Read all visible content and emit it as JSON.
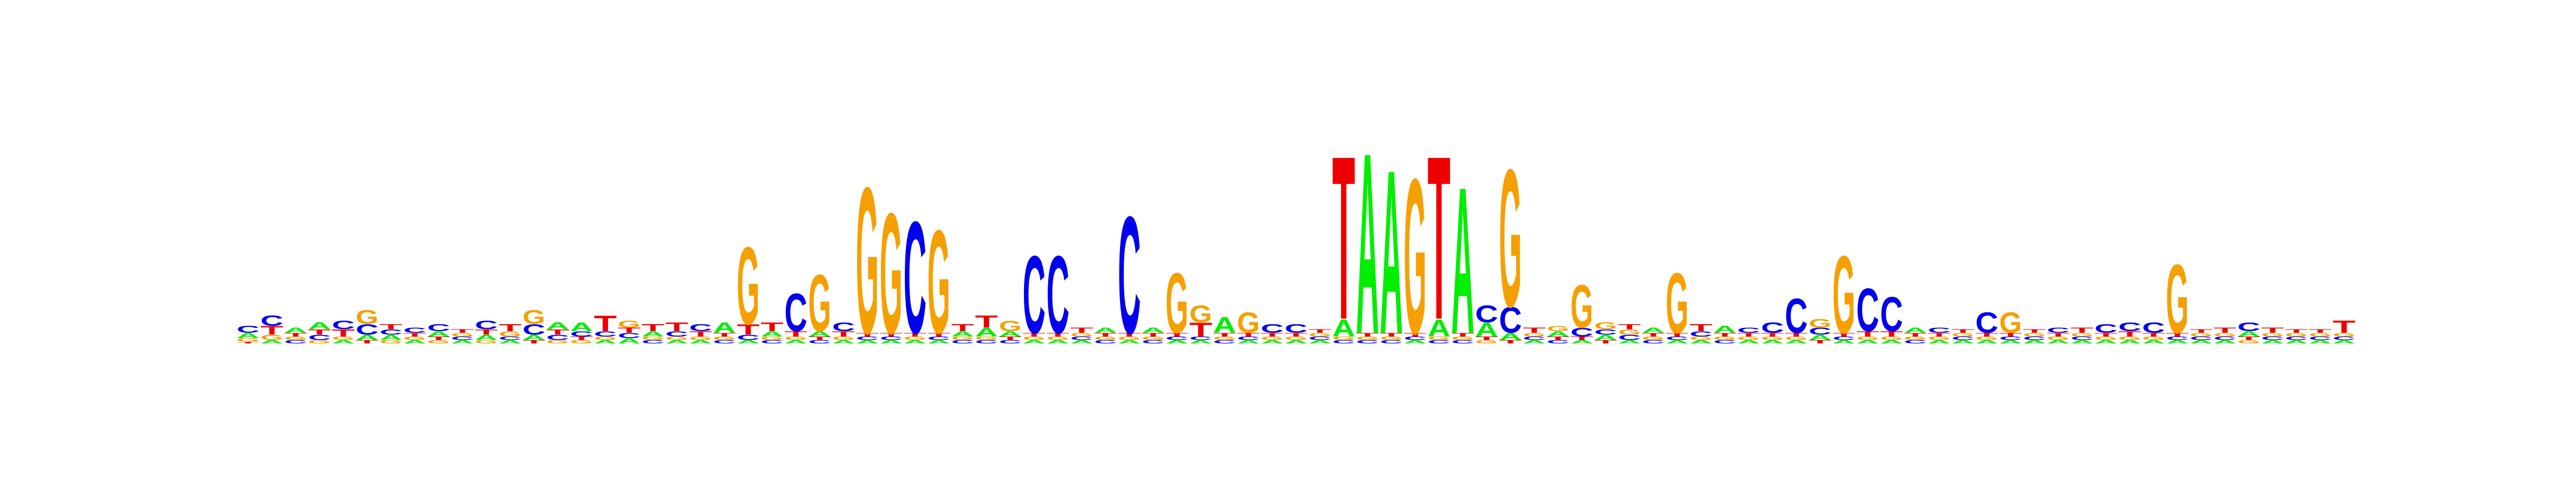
{
  "logo": {
    "alphabet": [
      "A",
      "C",
      "G",
      "T"
    ],
    "colors": {
      "A": "#00ee00",
      "C": "#0000ee",
      "G": "#f5a000",
      "T": "#ee0000"
    },
    "positions": [
      {
        "A": 0.03,
        "C": 0.04,
        "G": 0.02,
        "T": 0.01
      },
      {
        "A": 0.02,
        "C": 0.06,
        "G": 0.03,
        "T": 0.05
      },
      {
        "A": 0.03,
        "C": 0.02,
        "G": 0.02,
        "T": 0.02
      },
      {
        "A": 0.04,
        "C": 0.03,
        "G": 0.02,
        "T": 0.03
      },
      {
        "A": 0.02,
        "C": 0.05,
        "G": 0.02,
        "T": 0.04
      },
      {
        "A": 0.03,
        "C": 0.06,
        "G": 0.08,
        "T": 0.02
      },
      {
        "A": 0.03,
        "C": 0.03,
        "G": 0.02,
        "T": 0.03
      },
      {
        "A": 0.02,
        "C": 0.03,
        "G": 0.02,
        "T": 0.02
      },
      {
        "A": 0.03,
        "C": 0.04,
        "G": 0.02,
        "T": 0.02
      },
      {
        "A": 0.02,
        "C": 0.02,
        "G": 0.02,
        "T": 0.02
      },
      {
        "A": 0.03,
        "C": 0.05,
        "G": 0.02,
        "T": 0.03
      },
      {
        "A": 0.02,
        "C": 0.02,
        "G": 0.03,
        "T": 0.04
      },
      {
        "A": 0.03,
        "C": 0.06,
        "G": 0.08,
        "T": 0.02
      },
      {
        "A": 0.04,
        "C": 0.03,
        "G": 0.02,
        "T": 0.03
      },
      {
        "A": 0.05,
        "C": 0.03,
        "G": 0.02,
        "T": 0.02
      },
      {
        "A": 0.02,
        "C": 0.03,
        "G": 0.02,
        "T": 0.09
      },
      {
        "A": 0.03,
        "C": 0.03,
        "G": 0.04,
        "T": 0.03
      },
      {
        "A": 0.03,
        "C": 0.02,
        "G": 0.02,
        "T": 0.04
      },
      {
        "A": 0.02,
        "C": 0.03,
        "G": 0.02,
        "T": 0.05
      },
      {
        "A": 0.02,
        "C": 0.04,
        "G": 0.02,
        "T": 0.03
      },
      {
        "A": 0.06,
        "C": 0.02,
        "G": 0.02,
        "T": 0.02
      },
      {
        "A": 0.02,
        "C": 0.03,
        "G": 0.45,
        "T": 0.06
      },
      {
        "A": 0.03,
        "C": 0.02,
        "G": 0.02,
        "T": 0.05
      },
      {
        "A": 0.02,
        "C": 0.22,
        "G": 0.02,
        "T": 0.03
      },
      {
        "A": 0.03,
        "C": 0.02,
        "G": 0.33,
        "T": 0.02
      },
      {
        "A": 0.02,
        "C": 0.05,
        "G": 0.02,
        "T": 0.03
      },
      {
        "A": 0.02,
        "C": 0.02,
        "G": 0.85,
        "T": 0.02
      },
      {
        "A": 0.02,
        "C": 0.02,
        "G": 0.7,
        "T": 0.02
      },
      {
        "A": 0.02,
        "C": 0.65,
        "G": 0.02,
        "T": 0.02
      },
      {
        "A": 0.02,
        "C": 0.02,
        "G": 0.6,
        "T": 0.02
      },
      {
        "A": 0.03,
        "C": 0.02,
        "G": 0.02,
        "T": 0.04
      },
      {
        "A": 0.05,
        "C": 0.02,
        "G": 0.02,
        "T": 0.07
      },
      {
        "A": 0.03,
        "C": 0.02,
        "G": 0.06,
        "T": 0.02
      },
      {
        "A": 0.02,
        "C": 0.45,
        "G": 0.02,
        "T": 0.02
      },
      {
        "A": 0.02,
        "C": 0.45,
        "G": 0.02,
        "T": 0.02
      },
      {
        "A": 0.02,
        "C": 0.02,
        "G": 0.02,
        "T": 0.03
      },
      {
        "A": 0.03,
        "C": 0.02,
        "G": 0.02,
        "T": 0.02
      },
      {
        "A": 0.02,
        "C": 0.68,
        "G": 0.02,
        "T": 0.02
      },
      {
        "A": 0.03,
        "C": 0.02,
        "G": 0.02,
        "T": 0.02
      },
      {
        "A": 0.02,
        "C": 0.02,
        "G": 0.35,
        "T": 0.02
      },
      {
        "A": 0.02,
        "C": 0.02,
        "G": 0.1,
        "T": 0.08
      },
      {
        "A": 0.09,
        "C": 0.02,
        "G": 0.02,
        "T": 0.02
      },
      {
        "A": 0.02,
        "C": 0.02,
        "G": 0.12,
        "T": 0.02
      },
      {
        "A": 0.02,
        "C": 0.05,
        "G": 0.02,
        "T": 0.02
      },
      {
        "A": 0.02,
        "C": 0.05,
        "G": 0.02,
        "T": 0.02
      },
      {
        "A": 0.02,
        "C": 0.02,
        "G": 0.02,
        "T": 0.02
      },
      {
        "A": 0.1,
        "C": 0.02,
        "G": 0.02,
        "T": 0.95
      },
      {
        "A": 1.05,
        "C": 0.02,
        "G": 0.02,
        "T": 0.02
      },
      {
        "A": 0.95,
        "C": 0.02,
        "G": 0.02,
        "T": 0.02
      },
      {
        "A": 0.02,
        "C": 0.02,
        "G": 0.9,
        "T": 0.02
      },
      {
        "A": 0.1,
        "C": 0.02,
        "G": 0.02,
        "T": 0.95
      },
      {
        "A": 0.85,
        "C": 0.02,
        "G": 0.02,
        "T": 0.02
      },
      {
        "A": 0.08,
        "C": 0.1,
        "G": 0.02,
        "T": 0.02
      },
      {
        "A": 0.04,
        "C": 0.15,
        "G": 0.8,
        "T": 0.02
      },
      {
        "A": 0.02,
        "C": 0.02,
        "G": 0.02,
        "T": 0.03
      },
      {
        "A": 0.03,
        "C": 0.02,
        "G": 0.03,
        "T": 0.02
      },
      {
        "A": 0.02,
        "C": 0.05,
        "G": 0.25,
        "T": 0.02
      },
      {
        "A": 0.03,
        "C": 0.03,
        "G": 0.04,
        "T": 0.02
      },
      {
        "A": 0.02,
        "C": 0.03,
        "G": 0.03,
        "T": 0.03
      },
      {
        "A": 0.03,
        "C": 0.02,
        "G": 0.02,
        "T": 0.02
      },
      {
        "A": 0.02,
        "C": 0.02,
        "G": 0.35,
        "T": 0.02
      },
      {
        "A": 0.02,
        "C": 0.03,
        "G": 0.02,
        "T": 0.04
      },
      {
        "A": 0.04,
        "C": 0.02,
        "G": 0.02,
        "T": 0.02
      },
      {
        "A": 0.02,
        "C": 0.03,
        "G": 0.02,
        "T": 0.02
      },
      {
        "A": 0.02,
        "C": 0.06,
        "G": 0.02,
        "T": 0.02
      },
      {
        "A": 0.02,
        "C": 0.2,
        "G": 0.02,
        "T": 0.02
      },
      {
        "A": 0.03,
        "C": 0.04,
        "G": 0.05,
        "T": 0.02
      },
      {
        "A": 0.02,
        "C": 0.02,
        "G": 0.45,
        "T": 0.02
      },
      {
        "A": 0.02,
        "C": 0.25,
        "G": 0.02,
        "T": 0.03
      },
      {
        "A": 0.02,
        "C": 0.2,
        "G": 0.02,
        "T": 0.03
      },
      {
        "A": 0.03,
        "C": 0.02,
        "G": 0.02,
        "T": 0.02
      },
      {
        "A": 0.02,
        "C": 0.03,
        "G": 0.02,
        "T": 0.02
      },
      {
        "A": 0.02,
        "C": 0.02,
        "G": 0.02,
        "T": 0.02
      },
      {
        "A": 0.02,
        "C": 0.12,
        "G": 0.02,
        "T": 0.02
      },
      {
        "A": 0.02,
        "C": 0.02,
        "G": 0.12,
        "T": 0.02
      },
      {
        "A": 0.02,
        "C": 0.02,
        "G": 0.02,
        "T": 0.02
      },
      {
        "A": 0.02,
        "C": 0.03,
        "G": 0.02,
        "T": 0.02
      },
      {
        "A": 0.02,
        "C": 0.02,
        "G": 0.02,
        "T": 0.03
      },
      {
        "A": 0.02,
        "C": 0.05,
        "G": 0.02,
        "T": 0.02
      },
      {
        "A": 0.02,
        "C": 0.05,
        "G": 0.02,
        "T": 0.03
      },
      {
        "A": 0.02,
        "C": 0.06,
        "G": 0.02,
        "T": 0.02
      },
      {
        "A": 0.02,
        "C": 0.02,
        "G": 0.4,
        "T": 0.02
      },
      {
        "A": 0.02,
        "C": 0.02,
        "G": 0.02,
        "T": 0.02
      },
      {
        "A": 0.02,
        "C": 0.02,
        "G": 0.02,
        "T": 0.03
      },
      {
        "A": 0.03,
        "C": 0.05,
        "G": 0.02,
        "T": 0.02
      },
      {
        "A": 0.02,
        "C": 0.02,
        "G": 0.02,
        "T": 0.03
      },
      {
        "A": 0.02,
        "C": 0.02,
        "G": 0.02,
        "T": 0.02
      },
      {
        "A": 0.02,
        "C": 0.02,
        "G": 0.02,
        "T": 0.02
      },
      {
        "A": 0.02,
        "C": 0.02,
        "G": 0.02,
        "T": 0.07
      }
    ]
  }
}
